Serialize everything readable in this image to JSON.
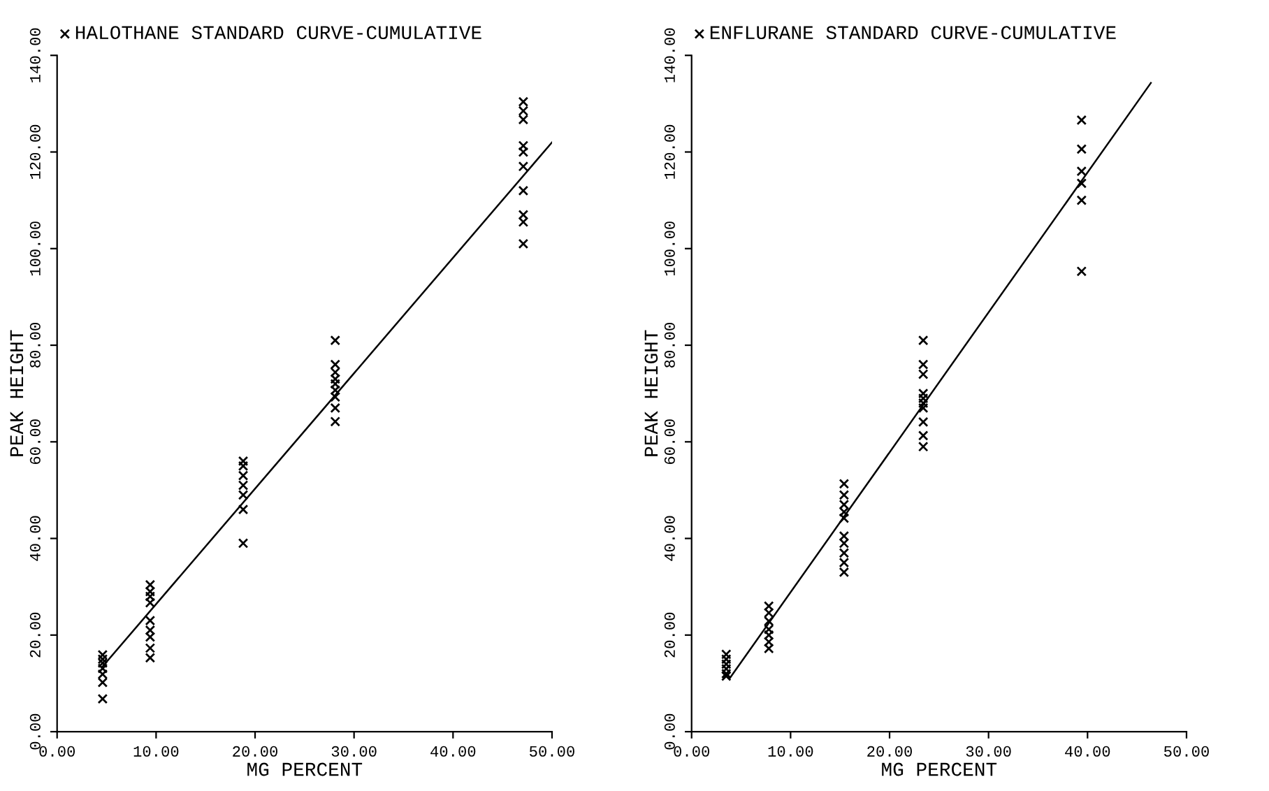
{
  "chart_data": [
    {
      "type": "scatter",
      "xlabel": "MG PERCENT",
      "ylabel": "PEAK HEIGHT",
      "xlim": [
        0,
        50
      ],
      "ylim": [
        0,
        140
      ],
      "xticks": [
        {
          "value": 0,
          "label": "0.00"
        },
        {
          "value": 10,
          "label": "10.00"
        },
        {
          "value": 20,
          "label": "20.00"
        },
        {
          "value": 30,
          "label": "30.00"
        },
        {
          "value": 40,
          "label": "40.00"
        },
        {
          "value": 50,
          "label": "50.00"
        }
      ],
      "yticks": [
        {
          "value": 0,
          "label": "0.00"
        },
        {
          "value": 20,
          "label": "20.00"
        },
        {
          "value": 40,
          "label": "40.00"
        },
        {
          "value": 60,
          "label": "60.00"
        },
        {
          "value": 80,
          "label": "80.00"
        },
        {
          "value": 100,
          "label": "100.00"
        },
        {
          "value": 120,
          "label": "120.00"
        },
        {
          "value": 140,
          "label": "140.00"
        }
      ],
      "grid": false,
      "legend": "top left",
      "series": [
        {
          "name": "HALOTHANE STANDARD CURVE-CUMULATIVE",
          "color": "#000000",
          "marker": "cross",
          "x": [
            4.6,
            4.6,
            4.6,
            4.6,
            4.6,
            4.6,
            4.6,
            9.4,
            9.4,
            9.4,
            9.4,
            9.4,
            9.4,
            9.4,
            9.4,
            9.4,
            18.8,
            18.8,
            18.8,
            18.8,
            18.8,
            18.8,
            18.8,
            28.1,
            28.1,
            28.1,
            28.1,
            28.1,
            28.1,
            28.1,
            28.1,
            28.1,
            47.1,
            47.1,
            47.1,
            47.1,
            47.1,
            47.1,
            47.1,
            47.1,
            47.1,
            47.1
          ],
          "values": [
            15.9,
            15,
            14.2,
            13.1,
            11.9,
            10.2,
            6.8,
            30.4,
            29,
            28,
            26.7,
            23,
            21,
            19.6,
            17.3,
            15.3,
            56,
            55,
            53,
            51,
            49,
            46,
            39,
            81,
            76,
            74.4,
            73,
            72,
            70.7,
            69.3,
            67,
            64.2,
            130.4,
            128.5,
            126.7,
            121.3,
            120,
            117,
            112,
            107,
            105.5,
            101
          ]
        },
        {
          "type": "line",
          "color": "#000000",
          "marker": "none",
          "x": [
            4.6,
            50
          ],
          "values": [
            13.5,
            122
          ]
        }
      ]
    },
    {
      "type": "scatter",
      "xlabel": "MG PERCENT",
      "ylabel": "PEAK HEIGHT",
      "xlim": [
        0,
        50
      ],
      "ylim": [
        0,
        140
      ],
      "xticks": [
        {
          "value": 0,
          "label": "0.00"
        },
        {
          "value": 10,
          "label": "10.00"
        },
        {
          "value": 20,
          "label": "20.00"
        },
        {
          "value": 30,
          "label": "30.00"
        },
        {
          "value": 40,
          "label": "40.00"
        },
        {
          "value": 50,
          "label": "50.00"
        }
      ],
      "yticks": [
        {
          "value": 0,
          "label": "0.00"
        },
        {
          "value": 20,
          "label": "20.00"
        },
        {
          "value": 40,
          "label": "40.00"
        },
        {
          "value": 60,
          "label": "60.00"
        },
        {
          "value": 80,
          "label": "80.00"
        },
        {
          "value": 100,
          "label": "100.00"
        },
        {
          "value": 120,
          "label": "120.00"
        },
        {
          "value": 140,
          "label": "140.00"
        }
      ],
      "grid": false,
      "legend": "top left",
      "series": [
        {
          "name": "ENFLURANE STANDARD CURVE-CUMULATIVE",
          "color": "#000000",
          "marker": "cross",
          "x": [
            3.5,
            3.5,
            3.5,
            3.5,
            3.5,
            3.5,
            7.8,
            7.8,
            7.8,
            7.8,
            7.8,
            7.8,
            7.8,
            15.4,
            15.4,
            15.4,
            15.4,
            15.4,
            15.4,
            15.4,
            15.4,
            15.4,
            15.4,
            23.4,
            23.4,
            23.4,
            23.4,
            23.4,
            23.4,
            23.4,
            23.4,
            23.4,
            23.4,
            39.4,
            39.4,
            39.4,
            39.4,
            39.4,
            39.4
          ],
          "values": [
            16,
            15,
            14,
            13,
            12,
            11.5,
            26,
            24.6,
            22.9,
            21.2,
            20,
            18.6,
            17.2,
            51.3,
            49,
            47,
            45.5,
            44.2,
            40.5,
            39,
            37,
            35,
            33,
            81,
            76,
            74,
            70,
            69,
            68,
            67,
            64.1,
            61.3,
            59,
            126.6,
            120.6,
            116,
            113.5,
            110,
            95.3
          ]
        },
        {
          "type": "line",
          "color": "#000000",
          "marker": "none",
          "x": [
            3.9,
            46.4
          ],
          "values": [
            11.2,
            134.3
          ]
        }
      ]
    }
  ]
}
